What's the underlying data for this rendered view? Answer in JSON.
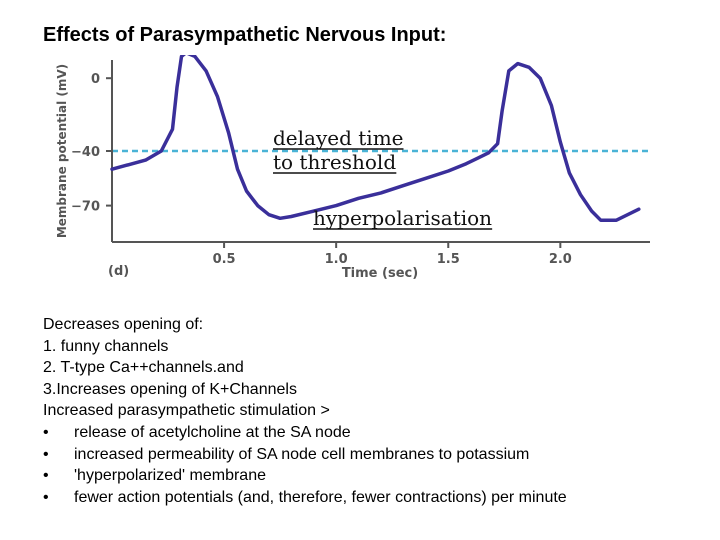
{
  "slide": {
    "title": "Effects of Parasympathetic Nervous Input:"
  },
  "chart_data": {
    "type": "line",
    "panel_label": "(d)",
    "xlabel": "Time (sec)",
    "ylabel": "Membrane potential (mV)",
    "xlim": [
      0.0,
      2.4
    ],
    "ylim": [
      -90,
      10
    ],
    "x_ticks": [
      0.5,
      1.0,
      1.5,
      2.0
    ],
    "x_tick_labels": [
      "0.5",
      "1.0",
      "1.5",
      "2.0"
    ],
    "y_ticks": [
      0,
      -40,
      -70
    ],
    "y_tick_labels": [
      "0",
      "−40",
      "−70"
    ],
    "threshold": {
      "y": -40,
      "color": "#4ab3d6",
      "style": "dashed"
    },
    "series": [
      {
        "color": "#3a2f9a",
        "x": [
          0.0,
          0.15,
          0.22,
          0.27,
          0.29,
          0.31,
          0.33,
          0.37,
          0.42,
          0.47,
          0.52,
          0.56,
          0.6,
          0.65,
          0.7,
          0.75,
          0.8,
          0.9,
          1.0,
          1.1,
          1.2,
          1.3,
          1.4,
          1.5,
          1.58,
          1.63,
          1.68,
          1.72,
          1.74,
          1.77,
          1.81,
          1.86,
          1.91,
          1.96,
          2.0,
          2.04,
          2.09,
          2.14,
          2.18,
          2.25,
          2.35
        ],
        "y": [
          -50,
          -45,
          -40,
          -28,
          -5,
          12,
          14,
          12,
          4,
          -10,
          -30,
          -50,
          -62,
          -70,
          -75,
          -77,
          -76,
          -73,
          -70,
          -66,
          -63,
          -59,
          -55,
          -51,
          -47,
          -44,
          -41,
          -36,
          -18,
          4,
          8,
          6,
          0,
          -15,
          -35,
          -52,
          -64,
          -73,
          -78,
          -78,
          -72
        ]
      }
    ],
    "annotations": [
      {
        "text": "delayed time",
        "underline": true
      },
      {
        "text": "to threshold",
        "underline": true
      },
      {
        "text": "hyperpolarisation",
        "underline": true
      }
    ]
  },
  "notes": {
    "lines": [
      "Decreases opening of:",
      "1. funny channels",
      "2. T-type Ca++channels.and",
      "3.Increases opening of K+Channels",
      "Increased parasympathetic stimulation >"
    ],
    "bullet_symbol": "•",
    "bullets": [
      "release of acetylcholine at the SA node",
      "increased permeability of SA node cell membranes to potassium",
      "'hyperpolarized' membrane",
      "fewer action potentials (and, therefore, fewer contractions) per minute"
    ]
  }
}
